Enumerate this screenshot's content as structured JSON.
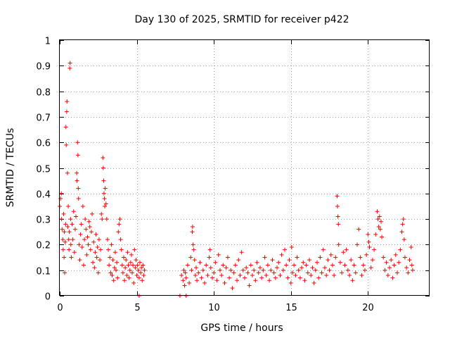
{
  "chart_data": {
    "type": "scatter",
    "title": "Day 130 of 2025, SRMTID for receiver p422",
    "xlabel": "GPS time / hours",
    "ylabel": "SRMTID / TECUs",
    "xlim": [
      0,
      24
    ],
    "ylim": [
      0,
      1
    ],
    "xticks": [
      0,
      5,
      10,
      15,
      20
    ],
    "xtick_labels": [
      "0",
      "5",
      "10",
      "15",
      "20"
    ],
    "yticks": [
      0,
      0.1,
      0.2,
      0.3,
      0.4,
      0.5,
      0.6,
      0.7,
      0.8,
      0.9,
      1
    ],
    "ytick_labels": [
      "0",
      "0.1",
      "0.2",
      "0.3",
      "0.4",
      "0.5",
      "0.6",
      "0.7",
      "0.8",
      "0.9",
      "1"
    ],
    "grid": true,
    "marker": "plus",
    "color": "#ff0000",
    "series": [
      {
        "name": "SRMTID",
        "points": [
          [
            0.0,
            0.35
          ],
          [
            0.05,
            0.38
          ],
          [
            0.1,
            0.4
          ],
          [
            0.12,
            0.3
          ],
          [
            0.15,
            0.26
          ],
          [
            0.2,
            0.22
          ],
          [
            0.22,
            0.18
          ],
          [
            0.25,
            0.32
          ],
          [
            0.28,
            0.15
          ],
          [
            0.3,
            0.25
          ],
          [
            0.32,
            0.09
          ],
          [
            0.35,
            0.21
          ],
          [
            0.38,
            0.28
          ],
          [
            0.4,
            0.66
          ],
          [
            0.42,
            0.59
          ],
          [
            0.45,
            0.72
          ],
          [
            0.47,
            0.76
          ],
          [
            0.5,
            0.48
          ],
          [
            0.52,
            0.27
          ],
          [
            0.55,
            0.35
          ],
          [
            0.58,
            0.22
          ],
          [
            0.6,
            0.18
          ],
          [
            0.62,
            0.25
          ],
          [
            0.65,
            0.89
          ],
          [
            0.67,
            0.91
          ],
          [
            0.7,
            0.3
          ],
          [
            0.72,
            0.2
          ],
          [
            0.75,
            0.15
          ],
          [
            0.8,
            0.28
          ],
          [
            0.85,
            0.22
          ],
          [
            0.9,
            0.33
          ],
          [
            0.95,
            0.17
          ],
          [
            1.0,
            0.26
          ],
          [
            1.05,
            0.31
          ],
          [
            1.1,
            0.48
          ],
          [
            1.12,
            0.45
          ],
          [
            1.15,
            0.6
          ],
          [
            1.18,
            0.55
          ],
          [
            1.2,
            0.42
          ],
          [
            1.22,
            0.38
          ],
          [
            1.25,
            0.2
          ],
          [
            1.3,
            0.14
          ],
          [
            1.35,
            0.24
          ],
          [
            1.4,
            0.28
          ],
          [
            1.45,
            0.19
          ],
          [
            1.5,
            0.35
          ],
          [
            1.55,
            0.12
          ],
          [
            1.6,
            0.22
          ],
          [
            1.65,
            0.3
          ],
          [
            1.7,
            0.26
          ],
          [
            1.75,
            0.16
          ],
          [
            1.8,
            0.23
          ],
          [
            1.85,
            0.2
          ],
          [
            1.9,
            0.29
          ],
          [
            1.95,
            0.27
          ],
          [
            2.0,
            0.18
          ],
          [
            2.05,
            0.25
          ],
          [
            2.1,
            0.32
          ],
          [
            2.15,
            0.13
          ],
          [
            2.2,
            0.21
          ],
          [
            2.25,
            0.11
          ],
          [
            2.3,
            0.17
          ],
          [
            2.35,
            0.24
          ],
          [
            2.4,
            0.15
          ],
          [
            2.45,
            0.19
          ],
          [
            2.5,
            0.09
          ],
          [
            2.55,
            0.22
          ],
          [
            2.6,
            0.14
          ],
          [
            2.65,
            0.18
          ],
          [
            2.7,
            0.32
          ],
          [
            2.75,
            0.3
          ],
          [
            2.8,
            0.54
          ],
          [
            2.82,
            0.5
          ],
          [
            2.85,
            0.45
          ],
          [
            2.87,
            0.4
          ],
          [
            2.9,
            0.38
          ],
          [
            2.92,
            0.35
          ],
          [
            2.95,
            0.42
          ],
          [
            3.0,
            0.36
          ],
          [
            3.05,
            0.3
          ],
          [
            3.1,
            0.22
          ],
          [
            3.15,
            0.18
          ],
          [
            3.2,
            0.12
          ],
          [
            3.25,
            0.15
          ],
          [
            3.3,
            0.09
          ],
          [
            3.35,
            0.2
          ],
          [
            3.4,
            0.08
          ],
          [
            3.45,
            0.14
          ],
          [
            3.5,
            0.06
          ],
          [
            3.55,
            0.11
          ],
          [
            3.6,
            0.17
          ],
          [
            3.65,
            0.1
          ],
          [
            3.7,
            0.13
          ],
          [
            3.75,
            0.07
          ],
          [
            3.8,
            0.25
          ],
          [
            3.85,
            0.28
          ],
          [
            3.9,
            0.3
          ],
          [
            3.95,
            0.22
          ],
          [
            4.0,
            0.18
          ],
          [
            4.05,
            0.12
          ],
          [
            4.1,
            0.09
          ],
          [
            4.15,
            0.15
          ],
          [
            4.2,
            0.06
          ],
          [
            4.25,
            0.11
          ],
          [
            4.3,
            0.14
          ],
          [
            4.35,
            0.08
          ],
          [
            4.4,
            0.17
          ],
          [
            4.45,
            0.12
          ],
          [
            4.5,
            0.07
          ],
          [
            4.55,
            0.1
          ],
          [
            4.6,
            0.13
          ],
          [
            4.65,
            0.16
          ],
          [
            4.7,
            0.09
          ],
          [
            4.75,
            0.12
          ],
          [
            4.8,
            0.05
          ],
          [
            4.85,
            0.18
          ],
          [
            4.9,
            0.11
          ],
          [
            4.95,
            0.14
          ],
          [
            5.0,
            0.08
          ],
          [
            5.05,
            0.12
          ],
          [
            5.1,
            0.1
          ],
          [
            5.15,
            0.07
          ],
          [
            5.2,
            0.13
          ],
          [
            5.25,
            0.09
          ],
          [
            5.3,
            0.11
          ],
          [
            5.35,
            0.06
          ],
          [
            5.4,
            0.12
          ],
          [
            5.45,
            0.08
          ],
          [
            5.5,
            0.1
          ],
          [
            5.15,
            0.0
          ],
          [
            7.8,
            0.0
          ],
          [
            8.2,
            0.0
          ],
          [
            7.9,
            0.08
          ],
          [
            8.0,
            0.06
          ],
          [
            8.05,
            0.1
          ],
          [
            8.1,
            0.04
          ],
          [
            8.15,
            0.09
          ],
          [
            8.2,
            0.07
          ],
          [
            8.3,
            0.12
          ],
          [
            8.4,
            0.05
          ],
          [
            8.5,
            0.15
          ],
          [
            8.55,
            0.1
          ],
          [
            8.6,
            0.25
          ],
          [
            8.62,
            0.27
          ],
          [
            8.65,
            0.2
          ],
          [
            8.7,
            0.18
          ],
          [
            8.75,
            0.14
          ],
          [
            8.8,
            0.08
          ],
          [
            8.85,
            0.11
          ],
          [
            8.9,
            0.06
          ],
          [
            9.0,
            0.09
          ],
          [
            9.1,
            0.13
          ],
          [
            9.2,
            0.07
          ],
          [
            9.3,
            0.1
          ],
          [
            9.4,
            0.05
          ],
          [
            9.5,
            0.12
          ],
          [
            9.6,
            0.08
          ],
          [
            9.7,
            0.15
          ],
          [
            9.75,
            0.18
          ],
          [
            9.8,
            0.11
          ],
          [
            9.9,
            0.07
          ],
          [
            10.0,
            0.09
          ],
          [
            10.1,
            0.13
          ],
          [
            10.2,
            0.06
          ],
          [
            10.3,
            0.16
          ],
          [
            10.4,
            0.1
          ],
          [
            10.5,
            0.08
          ],
          [
            10.6,
            0.12
          ],
          [
            10.7,
            0.05
          ],
          [
            10.8,
            0.11
          ],
          [
            10.9,
            0.15
          ],
          [
            11.0,
            0.07
          ],
          [
            11.1,
            0.1
          ],
          [
            11.2,
            0.03
          ],
          [
            11.3,
            0.09
          ],
          [
            11.4,
            0.12
          ],
          [
            11.5,
            0.06
          ],
          [
            11.6,
            0.14
          ],
          [
            11.7,
            0.08
          ],
          [
            11.8,
            0.17
          ],
          [
            11.9,
            0.1
          ],
          [
            12.0,
            0.07
          ],
          [
            12.1,
            0.11
          ],
          [
            12.2,
            0.09
          ],
          [
            12.3,
            0.04
          ],
          [
            12.4,
            0.12
          ],
          [
            12.5,
            0.08
          ],
          [
            12.6,
            0.1
          ],
          [
            12.7,
            0.06
          ],
          [
            12.8,
            0.13
          ],
          [
            12.9,
            0.09
          ],
          [
            13.0,
            0.11
          ],
          [
            13.1,
            0.07
          ],
          [
            13.2,
            0.1
          ],
          [
            13.3,
            0.15
          ],
          [
            13.4,
            0.08
          ],
          [
            13.5,
            0.12
          ],
          [
            13.6,
            0.06
          ],
          [
            13.7,
            0.1
          ],
          [
            13.8,
            0.14
          ],
          [
            13.9,
            0.09
          ],
          [
            14.0,
            0.07
          ],
          [
            14.1,
            0.11
          ],
          [
            14.2,
            0.13
          ],
          [
            14.3,
            0.08
          ],
          [
            14.4,
            0.16
          ],
          [
            14.5,
            0.1
          ],
          [
            14.6,
            0.18
          ],
          [
            14.7,
            0.12
          ],
          [
            14.8,
            0.07
          ],
          [
            14.9,
            0.14
          ],
          [
            15.0,
            0.05
          ],
          [
            15.05,
            0.19
          ],
          [
            15.1,
            0.09
          ],
          [
            15.2,
            0.12
          ],
          [
            15.3,
            0.08
          ],
          [
            15.4,
            0.15
          ],
          [
            15.5,
            0.1
          ],
          [
            15.6,
            0.07
          ],
          [
            15.7,
            0.11
          ],
          [
            15.8,
            0.13
          ],
          [
            15.9,
            0.06
          ],
          [
            16.0,
            0.12
          ],
          [
            16.1,
            0.09
          ],
          [
            16.2,
            0.14
          ],
          [
            16.3,
            0.08
          ],
          [
            16.4,
            0.11
          ],
          [
            16.5,
            0.05
          ],
          [
            16.6,
            0.1
          ],
          [
            16.7,
            0.13
          ],
          [
            16.8,
            0.07
          ],
          [
            16.9,
            0.15
          ],
          [
            17.0,
            0.09
          ],
          [
            17.1,
            0.18
          ],
          [
            17.2,
            0.11
          ],
          [
            17.3,
            0.08
          ],
          [
            17.4,
            0.14
          ],
          [
            17.5,
            0.1
          ],
          [
            17.6,
            0.16
          ],
          [
            17.7,
            0.12
          ],
          [
            17.8,
            0.08
          ],
          [
            17.9,
            0.15
          ],
          [
            18.0,
            0.39
          ],
          [
            18.02,
            0.35
          ],
          [
            18.05,
            0.31
          ],
          [
            18.08,
            0.28
          ],
          [
            18.1,
            0.2
          ],
          [
            18.2,
            0.13
          ],
          [
            18.3,
            0.09
          ],
          [
            18.4,
            0.17
          ],
          [
            18.5,
            0.12
          ],
          [
            18.6,
            0.18
          ],
          [
            18.7,
            0.1
          ],
          [
            18.8,
            0.08
          ],
          [
            18.9,
            0.14
          ],
          [
            19.0,
            0.06
          ],
          [
            19.1,
            0.12
          ],
          [
            19.2,
            0.09
          ],
          [
            19.3,
            0.2
          ],
          [
            19.4,
            0.26
          ],
          [
            19.5,
            0.15
          ],
          [
            19.6,
            0.08
          ],
          [
            19.7,
            0.12
          ],
          [
            19.8,
            0.1
          ],
          [
            19.9,
            0.16
          ],
          [
            20.0,
            0.24
          ],
          [
            20.05,
            0.21
          ],
          [
            20.1,
            0.19
          ],
          [
            20.2,
            0.11
          ],
          [
            20.3,
            0.14
          ],
          [
            20.4,
            0.18
          ],
          [
            20.5,
            0.24
          ],
          [
            20.6,
            0.33
          ],
          [
            20.65,
            0.3
          ],
          [
            20.7,
            0.27
          ],
          [
            20.75,
            0.31
          ],
          [
            20.8,
            0.26
          ],
          [
            20.85,
            0.29
          ],
          [
            20.9,
            0.23
          ],
          [
            21.0,
            0.15
          ],
          [
            21.1,
            0.1
          ],
          [
            21.2,
            0.13
          ],
          [
            21.3,
            0.08
          ],
          [
            21.4,
            0.11
          ],
          [
            21.5,
            0.14
          ],
          [
            21.6,
            0.07
          ],
          [
            21.7,
            0.12
          ],
          [
            21.8,
            0.16
          ],
          [
            21.9,
            0.09
          ],
          [
            22.0,
            0.13
          ],
          [
            22.1,
            0.18
          ],
          [
            22.2,
            0.25
          ],
          [
            22.25,
            0.28
          ],
          [
            22.3,
            0.3
          ],
          [
            22.35,
            0.22
          ],
          [
            22.4,
            0.15
          ],
          [
            22.5,
            0.11
          ],
          [
            22.6,
            0.09
          ],
          [
            22.7,
            0.14
          ],
          [
            22.8,
            0.19
          ],
          [
            22.85,
            0.12
          ],
          [
            22.9,
            0.1
          ]
        ]
      }
    ]
  }
}
